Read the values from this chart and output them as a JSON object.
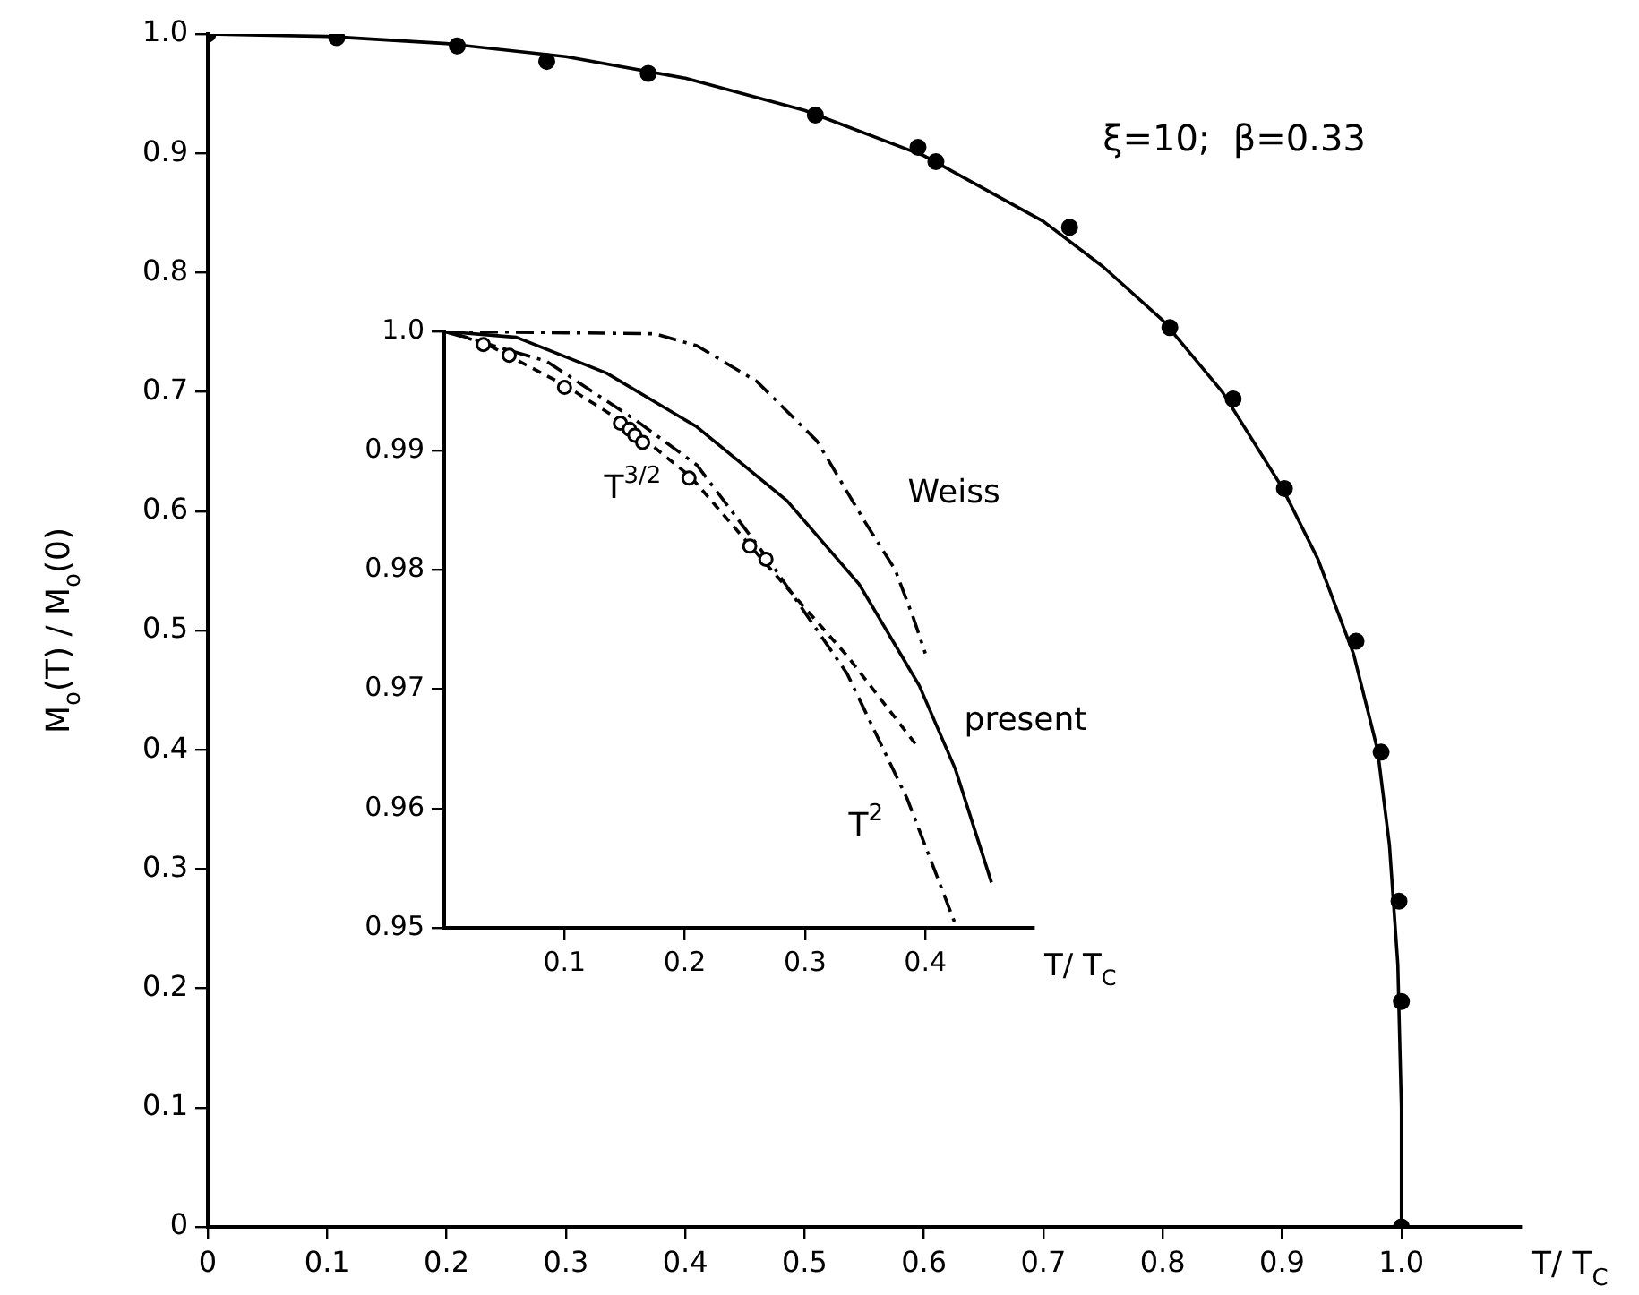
{
  "chart_data": [
    {
      "type": "line",
      "xlabel": "T/ T$_{C}$",
      "ylabel": "M$_{o}$(T) / M$_{o}$(0)",
      "annotations": [
        "ξ=10;  β=0.33"
      ],
      "xlim": [
        0,
        1.1
      ],
      "ylim": [
        0,
        1.0
      ],
      "xticks": [
        0,
        0.1,
        0.2,
        0.3,
        0.4,
        0.5,
        0.6,
        0.7,
        0.8,
        0.9,
        {
          "value": 1.0,
          "label": "1.0"
        }
      ],
      "yticks": [
        0,
        0.1,
        0.2,
        0.3,
        0.4,
        0.5,
        0.6,
        0.7,
        0.8,
        0.9,
        {
          "value": 1.0,
          "label": "1.0"
        }
      ],
      "grid": false,
      "legend": false,
      "series": [
        {
          "color": "#000000",
          "line_style": "solid",
          "marker": "none",
          "x": [
            0,
            0.1,
            0.2,
            0.3,
            0.4,
            0.5,
            0.6,
            0.7,
            0.75,
            0.8,
            0.85,
            0.9,
            0.93,
            0.96,
            0.98,
            0.99,
            0.997,
            1.0,
            1.0
          ],
          "values": [
            1.0,
            0.998,
            0.992,
            0.981,
            0.963,
            0.936,
            0.898,
            0.843,
            0.805,
            0.76,
            0.7,
            0.62,
            0.56,
            0.48,
            0.4,
            0.32,
            0.22,
            0.1,
            0
          ]
        },
        {
          "type": "scatter",
          "color": "#000000",
          "marker": "circle",
          "x": [
            0,
            0.108,
            0.209,
            0.284,
            0.369,
            0.509,
            0.595,
            0.61,
            0.722,
            0.806,
            0.859,
            0.902,
            0.962,
            0.983,
            0.998,
            1.0,
            1.0
          ],
          "values": [
            1.0,
            0.997,
            0.99,
            0.977,
            0.967,
            0.932,
            0.905,
            0.893,
            0.838,
            0.754,
            0.694,
            0.619,
            0.491,
            0.398,
            0.273,
            0.189,
            0
          ]
        }
      ]
    },
    {
      "type": "line",
      "xlabel": "T/ T$_{C}$",
      "xlim": [
        0,
        0.49
      ],
      "ylim": [
        0.95,
        1.0
      ],
      "xticks": [
        0.1,
        0.2,
        0.3,
        0.4
      ],
      "yticks": [
        0.95,
        0.96,
        0.97,
        0.98,
        0.99,
        {
          "value": 1.0,
          "label": "1.0"
        }
      ],
      "grid": false,
      "legend": false,
      "series": [
        {
          "name": "Weiss",
          "color": "#000000",
          "line_style": "dashdot",
          "marker": "none",
          "x": [
            0,
            0.175,
            0.21,
            0.26,
            0.31,
            0.35,
            0.375,
            0.39,
            0.4
          ],
          "values": [
            1.0,
            0.9998,
            0.9988,
            0.9958,
            0.9908,
            0.984,
            0.98,
            0.976,
            0.973
          ]
        },
        {
          "name": "present",
          "color": "#000000",
          "line_style": "solid",
          "marker": "none",
          "x": [
            0,
            0.06,
            0.135,
            0.21,
            0.285,
            0.345,
            0.395,
            0.425,
            0.455
          ],
          "values": [
            1.0,
            0.9995,
            0.9965,
            0.992,
            0.9858,
            0.9788,
            0.9703,
            0.9633,
            0.9538
          ]
        },
        {
          "name": "T$^{2}$",
          "color": "#000000",
          "line_style": "dashdot",
          "marker": "none",
          "x": [
            0,
            0.085,
            0.16,
            0.21,
            0.27,
            0.335,
            0.385,
            0.425
          ],
          "values": [
            1.0,
            0.9975,
            0.9925,
            0.9888,
            0.9808,
            0.9713,
            0.9608,
            0.9503
          ]
        },
        {
          "name": "T$^{3/2}$",
          "color": "#000000",
          "line_style": "dashed",
          "marker": "none",
          "x": [
            0,
            0.03,
            0.1,
            0.15,
            0.205,
            0.265,
            0.335,
            0.395
          ],
          "values": [
            1.0,
            0.9992,
            0.9955,
            0.9923,
            0.9878,
            0.9808,
            0.9728,
            0.965
          ]
        },
        {
          "type": "scatter",
          "color": "#000000",
          "marker": "circle",
          "x": [
            0.0325,
            0.054,
            0.1,
            0.1465,
            0.154,
            0.1585,
            0.165,
            0.2035,
            0.254,
            0.2675
          ],
          "values": [
            0.9989,
            0.998,
            0.9953,
            0.9923,
            0.9918,
            0.9913,
            0.9907,
            0.9877,
            0.982,
            0.9809
          ]
        }
      ]
    }
  ]
}
